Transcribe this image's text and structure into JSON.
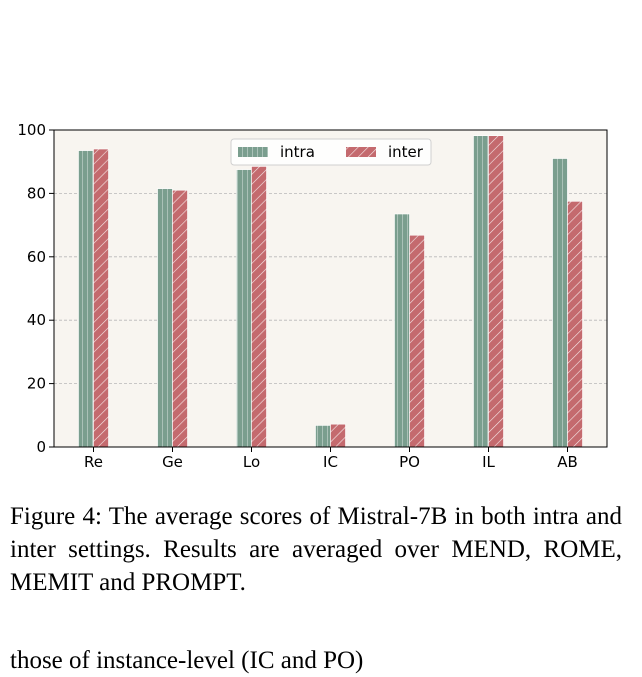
{
  "chart_data": {
    "type": "bar",
    "categories": [
      "Re",
      "Ge",
      "Lo",
      "IC",
      "PO",
      "IL",
      "AB"
    ],
    "series": [
      {
        "name": "intra",
        "values": [
          93.5,
          81.5,
          87.5,
          6.8,
          73.5,
          98.2,
          91.0
        ]
      },
      {
        "name": "inter",
        "values": [
          94.0,
          81.0,
          88.5,
          7.2,
          66.8,
          98.2,
          77.5
        ]
      }
    ],
    "ylim": [
      0,
      100
    ],
    "yticks": [
      0,
      20,
      40,
      60,
      80,
      100
    ],
    "title": "",
    "xlabel": "",
    "ylabel": "",
    "grid": true,
    "legend_position": "top-center",
    "colors": {
      "intra": "#7a9e8e",
      "inter": "#c46a6e",
      "plot_bg": "#f8f5f0",
      "grid": "#b8b8b8"
    }
  },
  "caption": "Figure 4: The average scores of Mistral-7B in both intra and inter settings. Results are averaged over MEND, ROME, MEMIT and PROMPT.",
  "body_text": "those of instance-level (IC and PO)"
}
